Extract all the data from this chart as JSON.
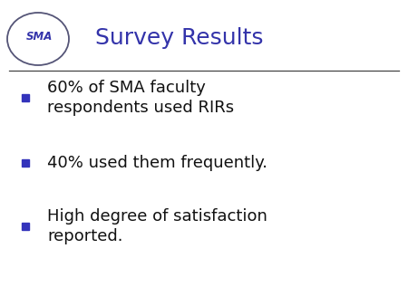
{
  "title": "Survey Results",
  "title_color": "#3333aa",
  "title_fontsize": 18,
  "background_color": "#ffffff",
  "bullet_color": "#3333bb",
  "text_color": "#111111",
  "bullet_items": [
    "60% of SMA faculty\nrespondents used RIRs",
    "40% used them frequently.",
    "High degree of satisfaction\nreported."
  ],
  "bullet_fontsize": 13,
  "line_color": "#444444",
  "logo_text": "SMA",
  "logo_text_color": "#3333aa",
  "logo_ellipse_color": "#555577"
}
